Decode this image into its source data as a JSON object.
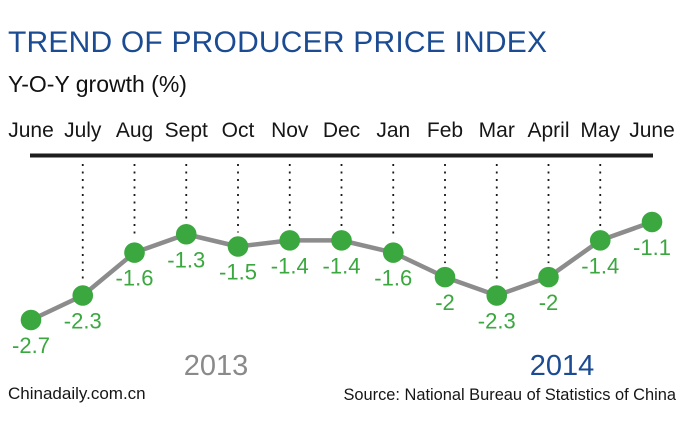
{
  "header": {
    "title": "TREND OF PRODUCER PRICE INDEX",
    "subtitle": "Y-O-Y growth (%)"
  },
  "chart_data": {
    "type": "line",
    "title": "TREND OF PRODUCER PRICE INDEX",
    "ylabel": "Y-O-Y growth (%)",
    "categories": [
      "June",
      "July",
      "Aug",
      "Sept",
      "Oct",
      "Nov",
      "Dec",
      "Jan",
      "Feb",
      "Mar",
      "April",
      "May",
      "June"
    ],
    "values": [
      -2.7,
      -2.3,
      -1.6,
      -1.3,
      -1.5,
      -1.4,
      -1.4,
      -1.6,
      -2,
      -2.3,
      -2,
      -1.4,
      -1.1
    ],
    "value_labels": [
      "-2.7",
      "-2.3",
      "-1.6",
      "-1.3",
      "-1.5",
      "-1.4",
      "-1.4",
      "-1.6",
      "-2",
      "-2.3",
      "-2",
      "-1.4",
      "-1.1"
    ],
    "ylim": [
      -3,
      -0.9
    ],
    "grid": "dotted vertical line per month, between top axis and each data point",
    "legend_position": "none",
    "point_color": "#3aa73f",
    "line_color": "#8c8c8c",
    "axis_color": "#1d1d1d",
    "month_label_color": "#161616",
    "value_label_color": "#3aa73f",
    "year_labels": [
      {
        "text": "2013",
        "color": "#8a8a8a"
      },
      {
        "text": "2014",
        "color": "#1b4b92"
      }
    ]
  },
  "footer": {
    "watermark": "Chinadaily.com.cn",
    "source": "Source: National Bureau of Statistics of China"
  },
  "colors": {
    "title_blue": "#1b4b92",
    "background": "#ffffff"
  }
}
